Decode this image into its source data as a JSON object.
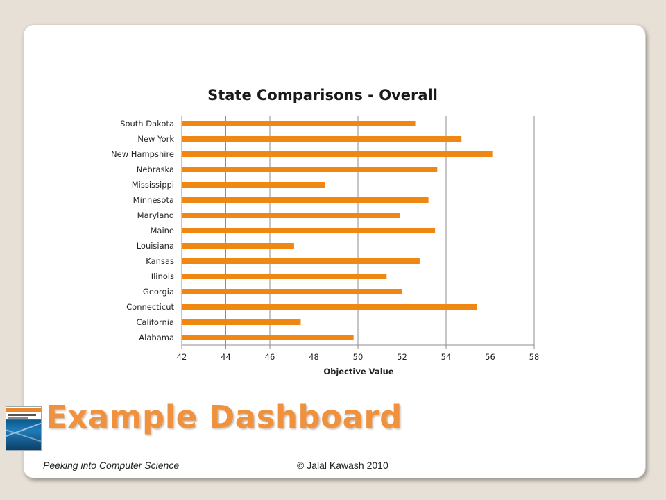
{
  "colors": {
    "bar": "#ef8712",
    "grid": "#8c8c8c",
    "background": "#e7e0d7"
  },
  "chart_data": {
    "type": "bar",
    "orientation": "horizontal",
    "title": "State Comparisons - Overall",
    "xlabel": "Objective Value",
    "ylabel": "",
    "xlim": [
      42,
      58
    ],
    "xticks": [
      42,
      44,
      46,
      48,
      50,
      52,
      54,
      56,
      58
    ],
    "grid": true,
    "categories": [
      "South Dakota",
      "New York",
      "New Hampshire",
      "Nebraska",
      "Mississippi",
      "Minnesota",
      "Maryland",
      "Maine",
      "Louisiana",
      "Kansas",
      "Ilinois",
      "Georgia",
      "Connecticut",
      "California",
      "Alabama"
    ],
    "values": [
      52.6,
      54.7,
      56.1,
      53.6,
      48.5,
      53.2,
      51.9,
      53.5,
      47.1,
      52.8,
      51.3,
      52.0,
      55.4,
      47.4,
      49.8
    ]
  },
  "slide": {
    "title": "Example Dashboard",
    "footer_left": "Peeking into Computer Science",
    "footer_right": "© Jalal Kawash 2010",
    "book_icon": "book-cover-icon"
  }
}
